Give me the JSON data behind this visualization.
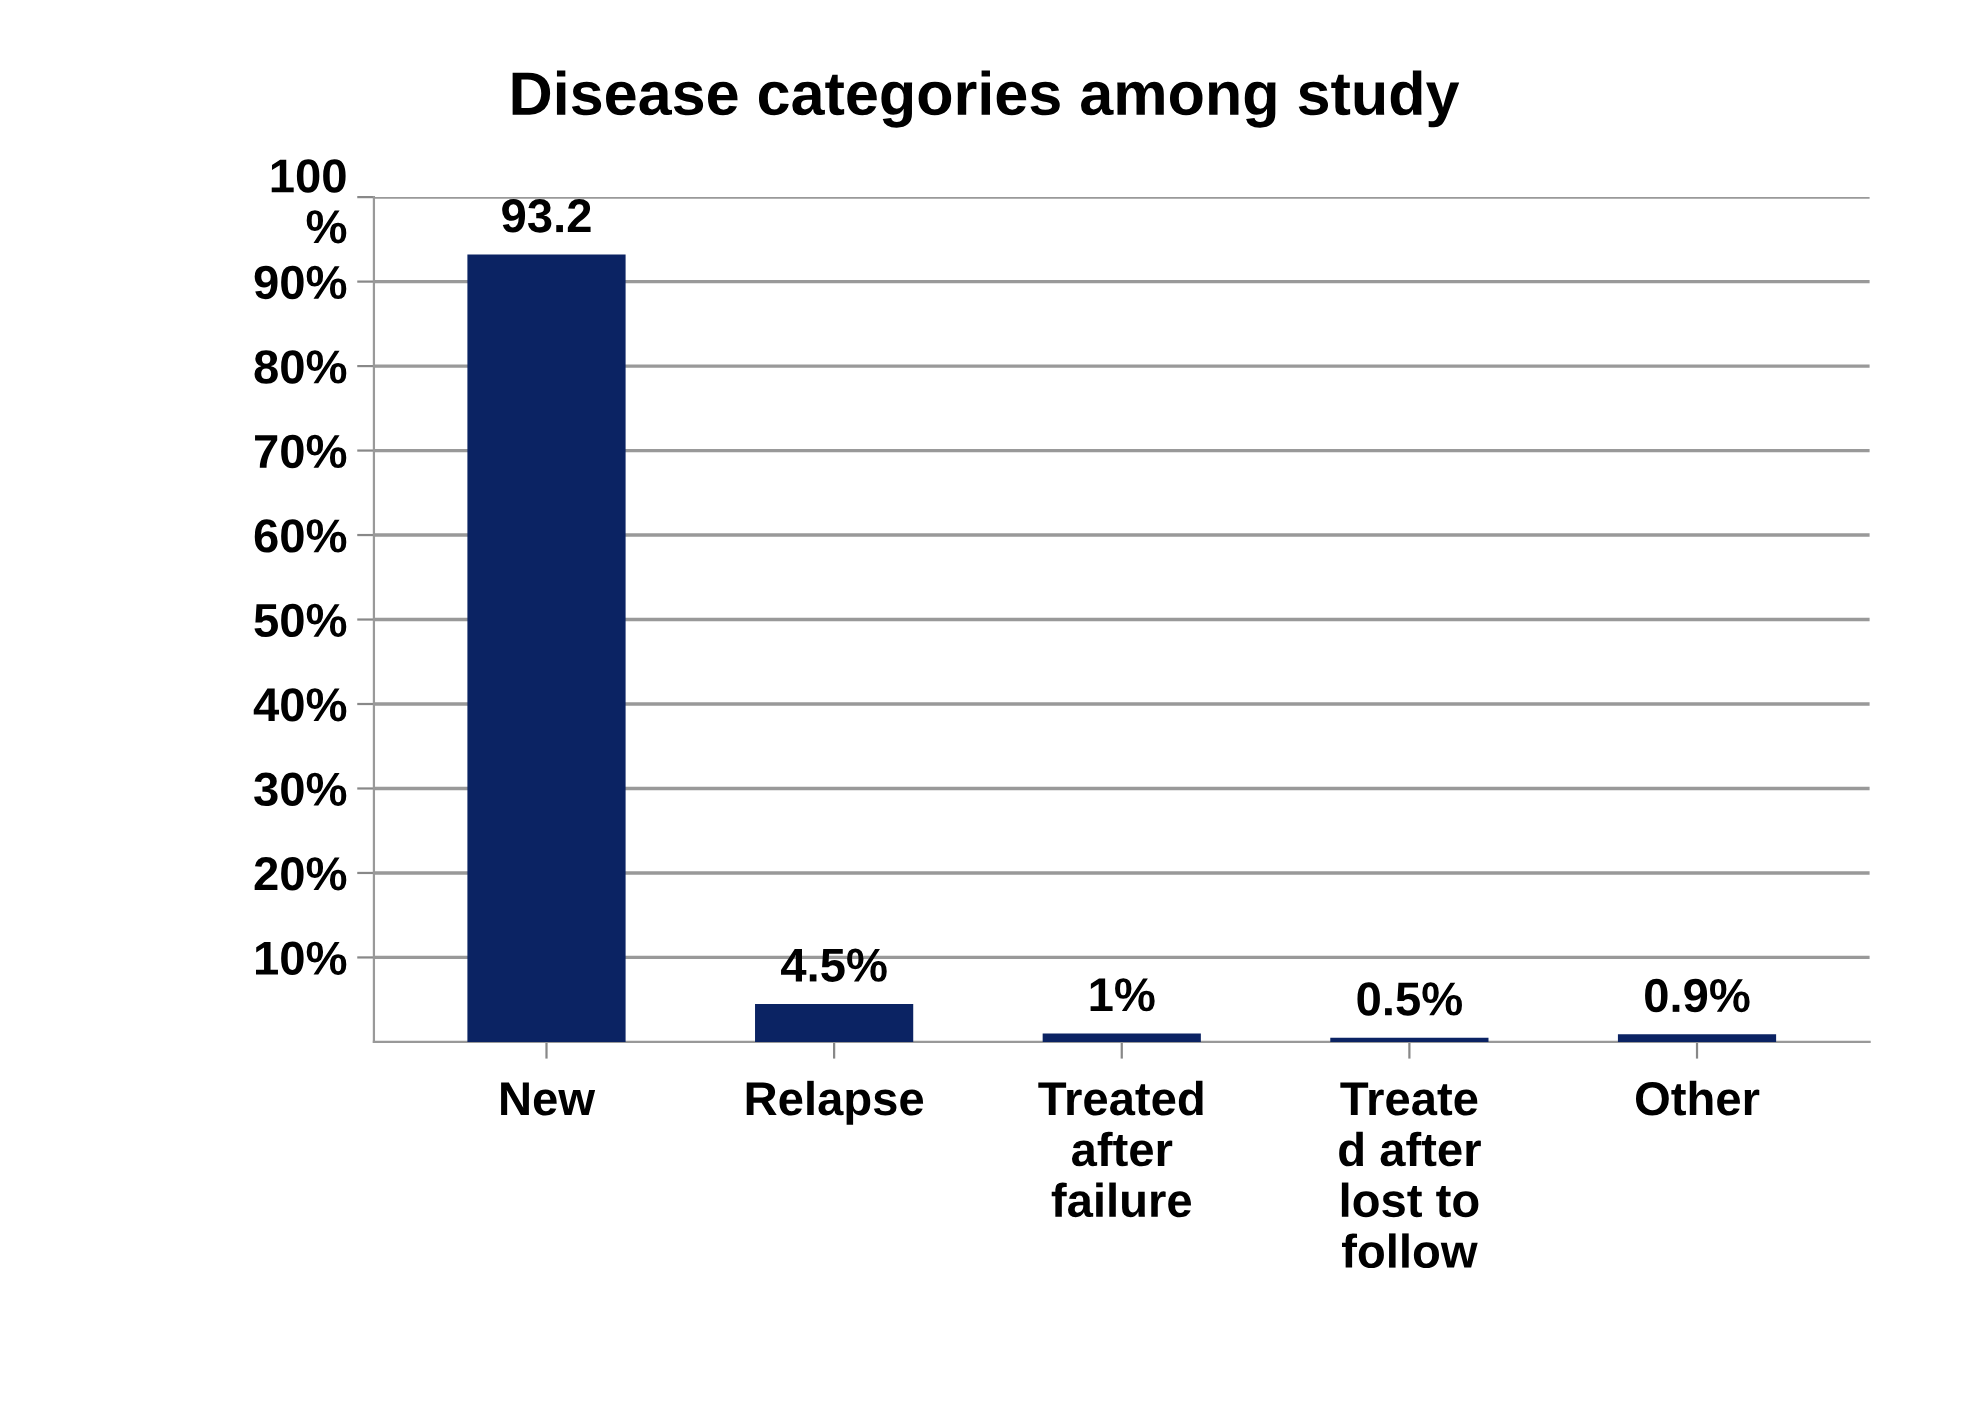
{
  "chart_data": {
    "type": "bar",
    "title": "Disease categories among study",
    "categories": [
      "New",
      "Relapse",
      "Treated\nafter\nfailure",
      "Treate\nd after\nlost to\nfollow",
      "Other"
    ],
    "values": [
      93.2,
      4.5,
      1,
      0.5,
      0.9
    ],
    "value_labels": [
      "93.2",
      "4.5%",
      "1%",
      "0.5%",
      "0.9%"
    ],
    "color": "#0b2363",
    "ylim": [
      0,
      100
    ],
    "yticks": [
      {
        "value": 10,
        "label": "10%"
      },
      {
        "value": 20,
        "label": "20%"
      },
      {
        "value": 30,
        "label": "30%"
      },
      {
        "value": 40,
        "label": "40%"
      },
      {
        "value": 50,
        "label": "50%"
      },
      {
        "value": 60,
        "label": "60%"
      },
      {
        "value": 70,
        "label": "70%"
      },
      {
        "value": 80,
        "label": "80%"
      },
      {
        "value": 90,
        "label": "90%"
      },
      {
        "value": 100,
        "label": "100\n%"
      }
    ],
    "grid": "y",
    "legend": false
  }
}
